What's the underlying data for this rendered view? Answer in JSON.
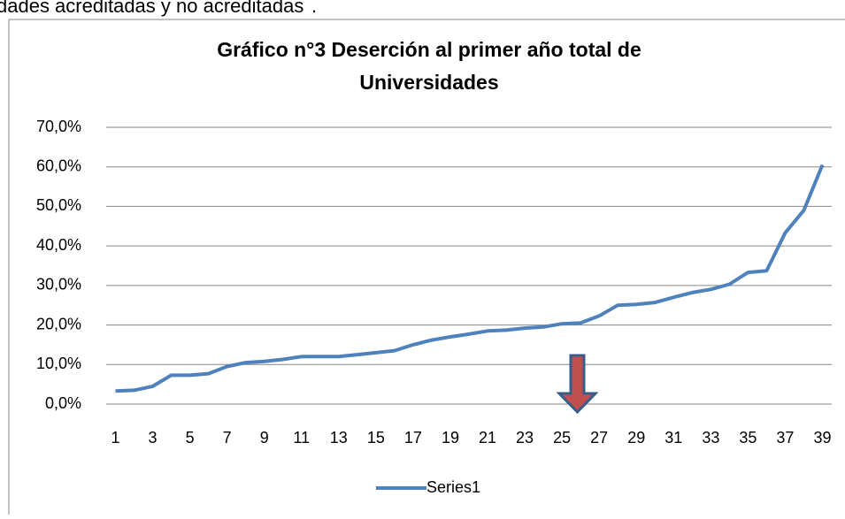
{
  "header_text": "dades acreditadas y no acreditadas",
  "header_end": ".",
  "chart_data": {
    "type": "line",
    "title": [
      "Gráfico n°3 Deserción al primer año total de",
      "Universidades"
    ],
    "categories": [
      1,
      null,
      3,
      null,
      5,
      null,
      7,
      null,
      9,
      null,
      11,
      null,
      13,
      null,
      15,
      null,
      17,
      null,
      19,
      null,
      21,
      null,
      23,
      null,
      25,
      null,
      27,
      null,
      29,
      null,
      31,
      null,
      33,
      null,
      35,
      null,
      37,
      null,
      39
    ],
    "series": [
      {
        "name": "Series1",
        "color": "#4f81bd",
        "values": [
          3.3,
          3.5,
          4.5,
          7.3,
          7.3,
          7.7,
          9.5,
          10.5,
          10.8,
          11.3,
          12.0,
          12.0,
          12.0,
          12.5,
          13.0,
          13.5,
          15.0,
          16.2,
          17.0,
          17.7,
          18.5,
          18.7,
          19.2,
          19.5,
          20.3,
          20.5,
          22.3,
          25.0,
          25.2,
          25.7,
          27.0,
          28.2,
          29.0,
          30.3,
          33.3,
          33.7,
          43.3,
          49.0,
          60.5
        ]
      }
    ],
    "ylim": [
      0,
      70
    ],
    "yticks": [
      {
        "value": 0,
        "label": "0,0%"
      },
      {
        "value": 10,
        "label": "10,0%"
      },
      {
        "value": 20,
        "label": "20,0%"
      },
      {
        "value": 30,
        "label": "30,0%"
      },
      {
        "value": 40,
        "label": "40,0%"
      },
      {
        "value": 50,
        "label": "50,0%"
      },
      {
        "value": 60,
        "label": "60,0%"
      },
      {
        "value": 70,
        "label": "70,0%"
      }
    ],
    "grid": true,
    "legend": "bottom"
  }
}
